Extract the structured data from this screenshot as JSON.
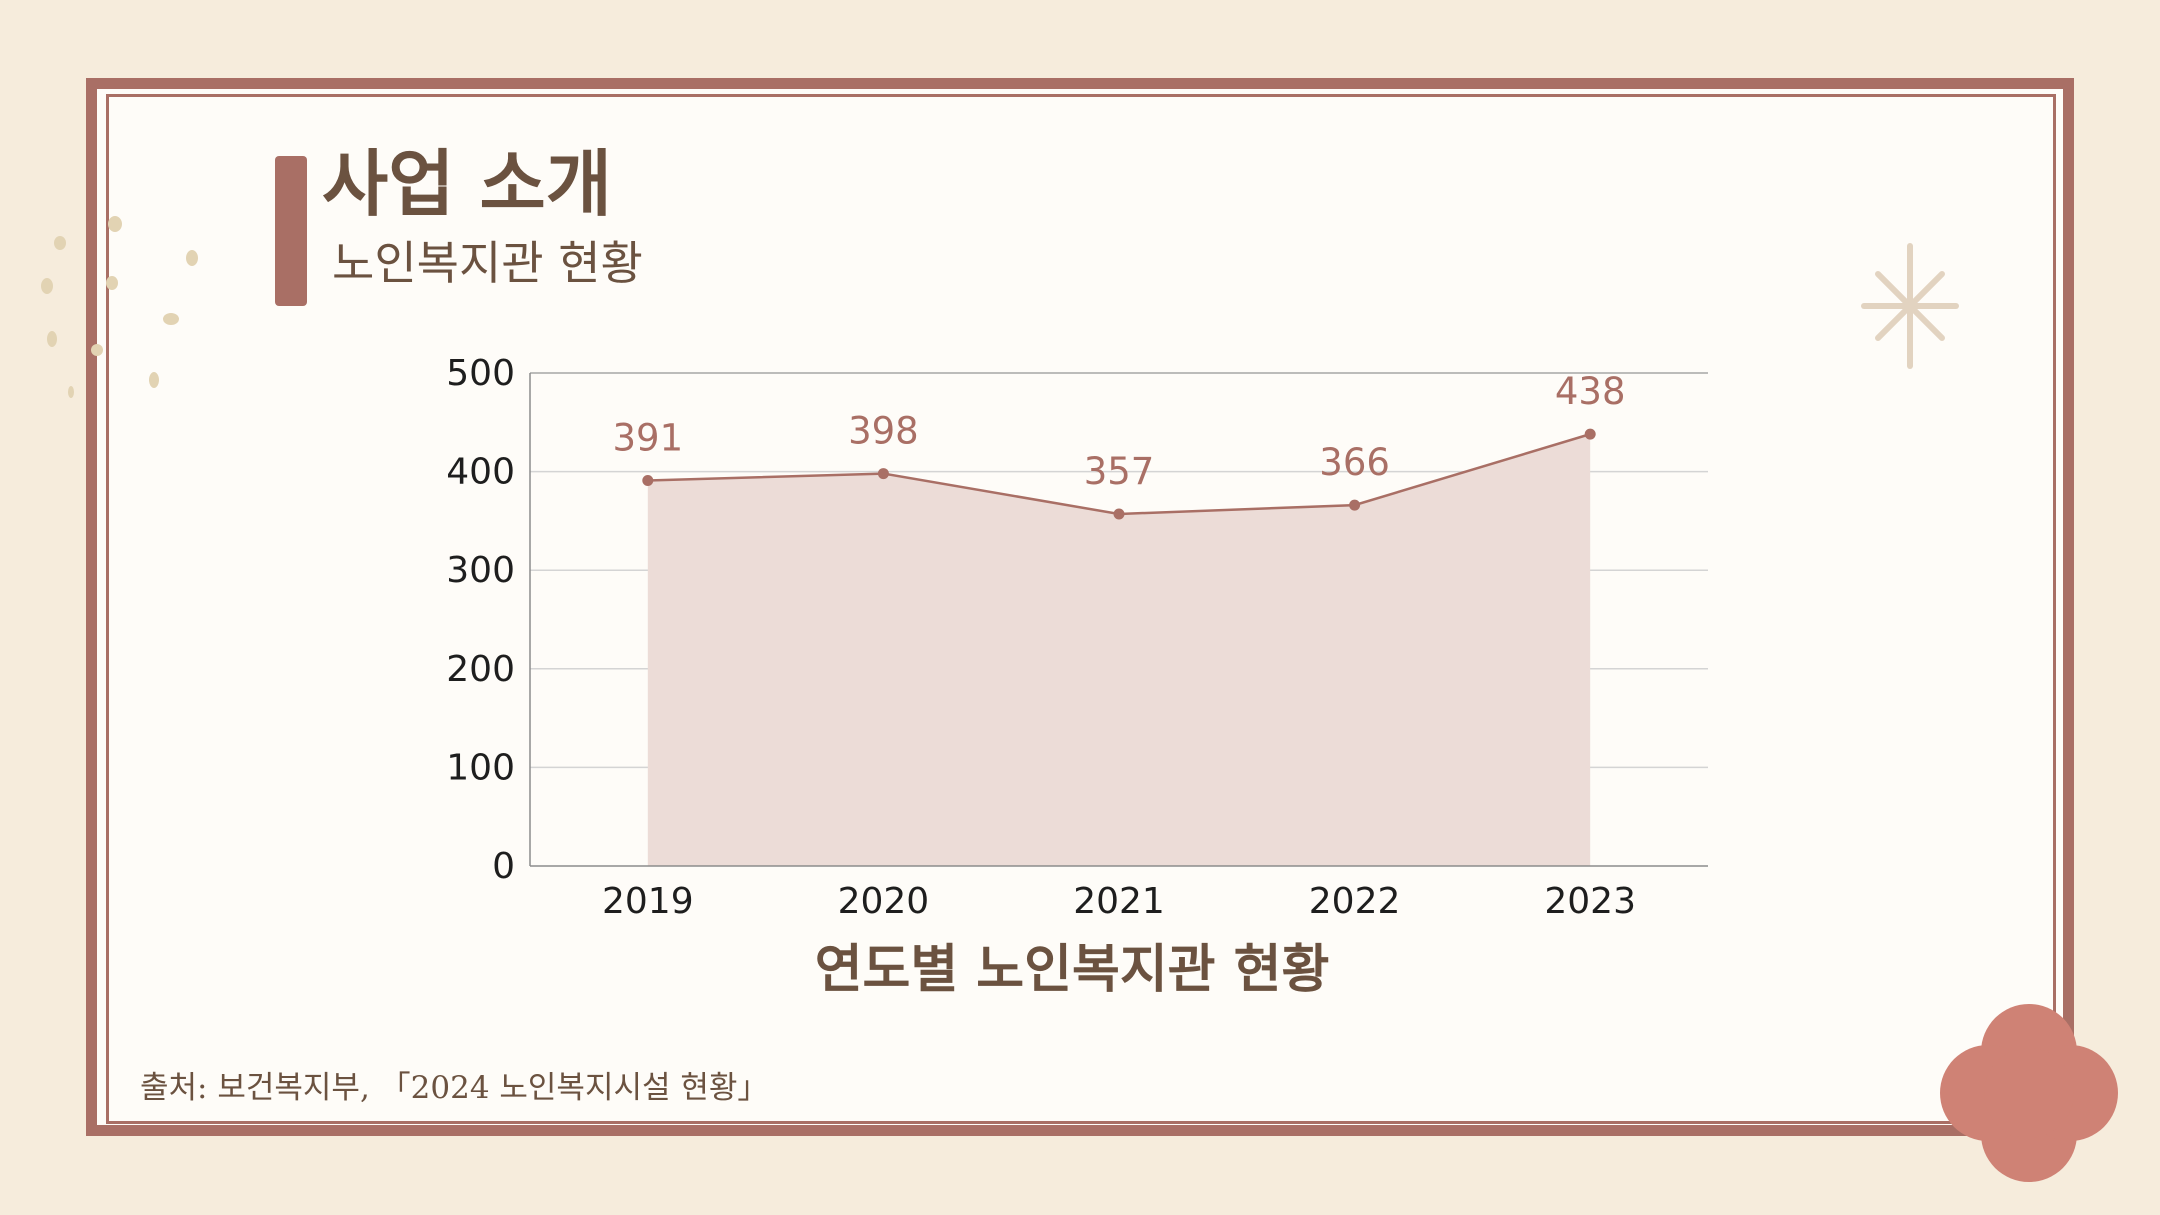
{
  "slide": {
    "title": "사업 소개",
    "subtitle": "노인복지관 현황",
    "source": "출처: 보건복지부, 「2024 노인복지시설 현황」"
  },
  "colors": {
    "background": "#f6ecdc",
    "panel": "#fefcf8",
    "frame": "#a96f65",
    "title_text": "#6b5240",
    "series_line": "#a96f65",
    "series_fill": "#ecdcd7",
    "decor_flower": "#cf8275",
    "decor_sparkle": "#e2d3c0",
    "decor_dots": "#e2d3b3"
  },
  "icons": {
    "sparkle": "sparkle-icon",
    "flower": "flower-icon",
    "dots": "scattered-dots-icon"
  },
  "chart_data": {
    "type": "area",
    "title": "",
    "xlabel": "연도별 노인복지관 현황",
    "ylabel": "",
    "categories": [
      "2019",
      "2020",
      "2021",
      "2022",
      "2023"
    ],
    "series": [
      {
        "values": [
          391,
          398,
          357,
          366,
          438
        ]
      }
    ],
    "ylim": [
      0,
      500
    ],
    "yticks": [
      0,
      100,
      200,
      300,
      400,
      500
    ],
    "data_labels": true,
    "grid": true,
    "legend": "none"
  }
}
